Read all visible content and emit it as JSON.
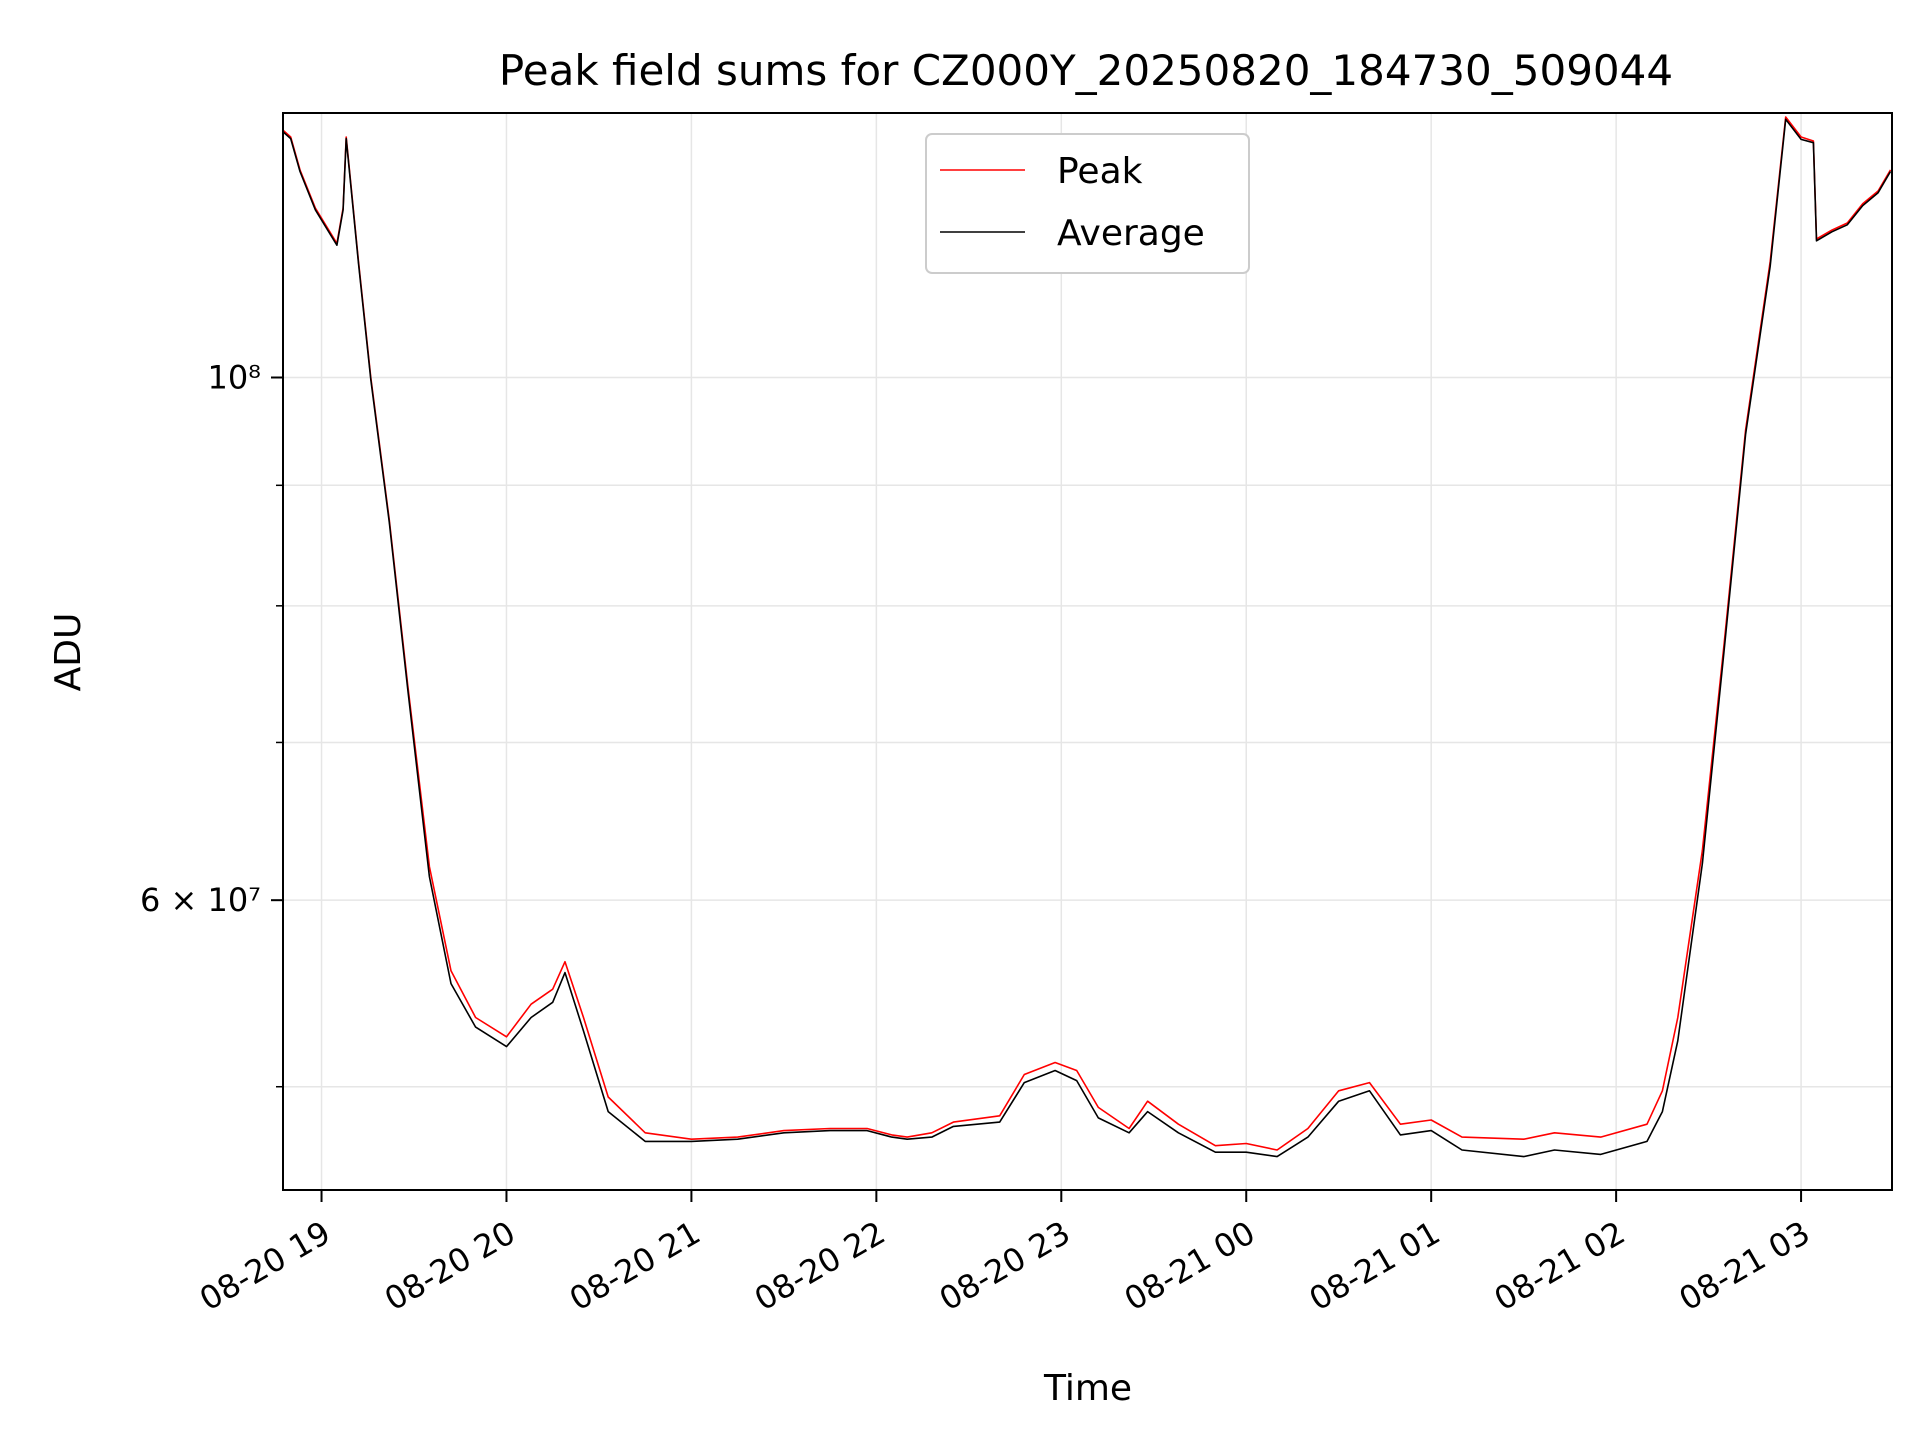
{
  "chart_data": {
    "type": "line",
    "title": "Peak field sums for CZ000Y_20250820_184730_509044",
    "xlabel": "Time",
    "ylabel": "ADU",
    "yscale": "log",
    "ylim": [
      45200000,
      129500000
    ],
    "xlim": [
      "2025-08-20 18:47:30",
      "2025-08-21 03:29:30"
    ],
    "grid": true,
    "legend_position": "top-center",
    "x_ticks": [
      {
        "label": "08-20 19",
        "time": "2025-08-20 19:00"
      },
      {
        "label": "08-20 20",
        "time": "2025-08-20 20:00"
      },
      {
        "label": "08-20 21",
        "time": "2025-08-20 21:00"
      },
      {
        "label": "08-20 22",
        "time": "2025-08-20 22:00"
      },
      {
        "label": "08-20 23",
        "time": "2025-08-20 23:00"
      },
      {
        "label": "08-21 00",
        "time": "2025-08-21 00:00"
      },
      {
        "label": "08-21 01",
        "time": "2025-08-21 01:00"
      },
      {
        "label": "08-21 02",
        "time": "2025-08-21 02:00"
      },
      {
        "label": "08-21 03",
        "time": "2025-08-21 03:00"
      }
    ],
    "y_ticks": [
      {
        "label": "10⁸",
        "value": 100000000
      },
      {
        "label": "6 × 10⁷",
        "value": 60000000
      }
    ],
    "y_minor_ticks": [
      50000000,
      70000000,
      80000000,
      90000000
    ],
    "series": [
      {
        "name": "Peak",
        "color": "#ff0000",
        "points": [
          [
            "2025-08-20 18:47",
            127500000
          ],
          [
            "2025-08-20 18:50",
            126500000
          ],
          [
            "2025-08-20 18:53",
            122500000
          ],
          [
            "2025-08-20 18:58",
            118000000
          ],
          [
            "2025-08-20 19:05",
            114000000
          ],
          [
            "2025-08-20 19:07",
            118000000
          ],
          [
            "2025-08-20 19:08",
            126500000
          ],
          [
            "2025-08-20 19:12",
            112000000
          ],
          [
            "2025-08-20 19:16",
            100000000
          ],
          [
            "2025-08-20 19:22",
            87000000
          ],
          [
            "2025-08-20 19:28",
            74000000
          ],
          [
            "2025-08-20 19:35",
            62000000
          ],
          [
            "2025-08-20 19:42",
            56000000
          ],
          [
            "2025-08-20 19:50",
            53500000
          ],
          [
            "2025-08-20 20:00",
            52500000
          ],
          [
            "2025-08-20 20:08",
            54200000
          ],
          [
            "2025-08-20 20:15",
            55000000
          ],
          [
            "2025-08-20 20:19",
            56500000
          ],
          [
            "2025-08-20 20:25",
            53500000
          ],
          [
            "2025-08-20 20:33",
            49500000
          ],
          [
            "2025-08-20 20:45",
            47800000
          ],
          [
            "2025-08-20 21:00",
            47500000
          ],
          [
            "2025-08-20 21:15",
            47600000
          ],
          [
            "2025-08-20 21:30",
            47900000
          ],
          [
            "2025-08-20 21:45",
            48000000
          ],
          [
            "2025-08-20 21:57",
            48000000
          ],
          [
            "2025-08-20 22:05",
            47700000
          ],
          [
            "2025-08-20 22:10",
            47600000
          ],
          [
            "2025-08-20 22:18",
            47800000
          ],
          [
            "2025-08-20 22:25",
            48300000
          ],
          [
            "2025-08-20 22:40",
            48600000
          ],
          [
            "2025-08-20 22:48",
            50600000
          ],
          [
            "2025-08-20 22:58",
            51200000
          ],
          [
            "2025-08-20 23:05",
            50800000
          ],
          [
            "2025-08-20 23:12",
            49000000
          ],
          [
            "2025-08-20 23:22",
            48000000
          ],
          [
            "2025-08-20 23:28",
            49300000
          ],
          [
            "2025-08-20 23:38",
            48200000
          ],
          [
            "2025-08-20 23:50",
            47200000
          ],
          [
            "2025-08-21 00:00",
            47300000
          ],
          [
            "2025-08-21 00:10",
            47000000
          ],
          [
            "2025-08-21 00:20",
            48000000
          ],
          [
            "2025-08-21 00:30",
            49800000
          ],
          [
            "2025-08-21 00:40",
            50200000
          ],
          [
            "2025-08-21 00:50",
            48200000
          ],
          [
            "2025-08-21 01:00",
            48400000
          ],
          [
            "2025-08-21 01:10",
            47600000
          ],
          [
            "2025-08-21 01:30",
            47500000
          ],
          [
            "2025-08-21 01:40",
            47800000
          ],
          [
            "2025-08-21 01:55",
            47600000
          ],
          [
            "2025-08-21 02:10",
            48200000
          ],
          [
            "2025-08-21 02:15",
            49800000
          ],
          [
            "2025-08-21 02:20",
            53500000
          ],
          [
            "2025-08-21 02:28",
            63000000
          ],
          [
            "2025-08-21 02:35",
            77000000
          ],
          [
            "2025-08-21 02:42",
            95000000
          ],
          [
            "2025-08-21 02:50",
            112000000
          ],
          [
            "2025-08-21 02:55",
            129000000
          ],
          [
            "2025-08-21 03:00",
            126500000
          ],
          [
            "2025-08-21 03:04",
            126000000
          ],
          [
            "2025-08-21 03:05",
            114500000
          ],
          [
            "2025-08-21 03:10",
            115500000
          ],
          [
            "2025-08-21 03:15",
            116300000
          ],
          [
            "2025-08-21 03:20",
            118500000
          ],
          [
            "2025-08-21 03:25",
            120000000
          ],
          [
            "2025-08-21 03:29",
            122500000
          ]
        ]
      },
      {
        "name": "Average",
        "color": "#000000",
        "points": [
          [
            "2025-08-20 18:47",
            127300000
          ],
          [
            "2025-08-20 18:50",
            126300000
          ],
          [
            "2025-08-20 18:53",
            122300000
          ],
          [
            "2025-08-20 18:58",
            117800000
          ],
          [
            "2025-08-20 19:05",
            113800000
          ],
          [
            "2025-08-20 19:07",
            117800000
          ],
          [
            "2025-08-20 19:08",
            126300000
          ],
          [
            "2025-08-20 19:12",
            111800000
          ],
          [
            "2025-08-20 19:16",
            99800000
          ],
          [
            "2025-08-20 19:22",
            86800000
          ],
          [
            "2025-08-20 19:28",
            73700000
          ],
          [
            "2025-08-20 19:35",
            61400000
          ],
          [
            "2025-08-20 19:42",
            55300000
          ],
          [
            "2025-08-20 19:50",
            53000000
          ],
          [
            "2025-08-20 20:00",
            52000000
          ],
          [
            "2025-08-20 20:08",
            53500000
          ],
          [
            "2025-08-20 20:15",
            54300000
          ],
          [
            "2025-08-20 20:19",
            55900000
          ],
          [
            "2025-08-20 20:25",
            52800000
          ],
          [
            "2025-08-20 20:33",
            48800000
          ],
          [
            "2025-08-20 20:45",
            47400000
          ],
          [
            "2025-08-20 21:00",
            47400000
          ],
          [
            "2025-08-20 21:15",
            47500000
          ],
          [
            "2025-08-20 21:30",
            47800000
          ],
          [
            "2025-08-20 21:45",
            47900000
          ],
          [
            "2025-08-20 21:57",
            47900000
          ],
          [
            "2025-08-20 22:05",
            47600000
          ],
          [
            "2025-08-20 22:10",
            47500000
          ],
          [
            "2025-08-20 22:18",
            47600000
          ],
          [
            "2025-08-20 22:25",
            48100000
          ],
          [
            "2025-08-20 22:40",
            48300000
          ],
          [
            "2025-08-20 22:48",
            50200000
          ],
          [
            "2025-08-20 22:58",
            50800000
          ],
          [
            "2025-08-20 23:05",
            50300000
          ],
          [
            "2025-08-20 23:12",
            48500000
          ],
          [
            "2025-08-20 23:22",
            47800000
          ],
          [
            "2025-08-20 23:28",
            48800000
          ],
          [
            "2025-08-20 23:38",
            47800000
          ],
          [
            "2025-08-20 23:50",
            46900000
          ],
          [
            "2025-08-21 00:00",
            46900000
          ],
          [
            "2025-08-21 00:10",
            46700000
          ],
          [
            "2025-08-21 00:20",
            47600000
          ],
          [
            "2025-08-21 00:30",
            49300000
          ],
          [
            "2025-08-21 00:40",
            49800000
          ],
          [
            "2025-08-21 00:50",
            47700000
          ],
          [
            "2025-08-21 01:00",
            47900000
          ],
          [
            "2025-08-21 01:10",
            47000000
          ],
          [
            "2025-08-21 01:30",
            46700000
          ],
          [
            "2025-08-21 01:40",
            47000000
          ],
          [
            "2025-08-21 01:55",
            46800000
          ],
          [
            "2025-08-21 02:10",
            47400000
          ],
          [
            "2025-08-21 02:15",
            48800000
          ],
          [
            "2025-08-21 02:20",
            52300000
          ],
          [
            "2025-08-21 02:28",
            62200000
          ],
          [
            "2025-08-21 02:35",
            76500000
          ],
          [
            "2025-08-21 02:42",
            94600000
          ],
          [
            "2025-08-21 02:50",
            111500000
          ],
          [
            "2025-08-21 02:55",
            128700000
          ],
          [
            "2025-08-21 03:00",
            126200000
          ],
          [
            "2025-08-21 03:04",
            125800000
          ],
          [
            "2025-08-21 03:05",
            114300000
          ],
          [
            "2025-08-21 03:10",
            115300000
          ],
          [
            "2025-08-21 03:15",
            116100000
          ],
          [
            "2025-08-21 03:20",
            118300000
          ],
          [
            "2025-08-21 03:25",
            119800000
          ],
          [
            "2025-08-21 03:29",
            122300000
          ]
        ]
      }
    ]
  }
}
